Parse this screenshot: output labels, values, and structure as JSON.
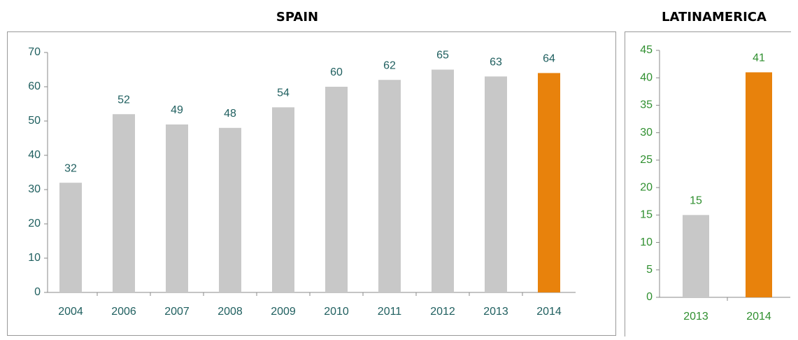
{
  "chart_data": [
    {
      "type": "bar",
      "title": "SPAIN",
      "categories": [
        "2004",
        "2006",
        "2007",
        "2008",
        "2009",
        "2010",
        "2011",
        "2012",
        "2013",
        "2014"
      ],
      "values": [
        32,
        52,
        49,
        48,
        54,
        60,
        62,
        65,
        63,
        64
      ],
      "colors": [
        "#c8c8c8",
        "#c8c8c8",
        "#c8c8c8",
        "#c8c8c8",
        "#c8c8c8",
        "#c8c8c8",
        "#c8c8c8",
        "#c8c8c8",
        "#c8c8c8",
        "#e8820c"
      ],
      "ylim": [
        0,
        70
      ],
      "yticks": [
        0,
        10,
        20,
        30,
        40,
        50,
        60,
        70
      ]
    },
    {
      "type": "bar",
      "title": "LATINAMERICA",
      "categories": [
        "2013",
        "2014"
      ],
      "values": [
        15,
        41
      ],
      "colors": [
        "#c8c8c8",
        "#e8820c"
      ],
      "ylim": [
        0,
        45
      ],
      "yticks": [
        0,
        5,
        10,
        15,
        20,
        25,
        30,
        35,
        40,
        45
      ]
    }
  ]
}
